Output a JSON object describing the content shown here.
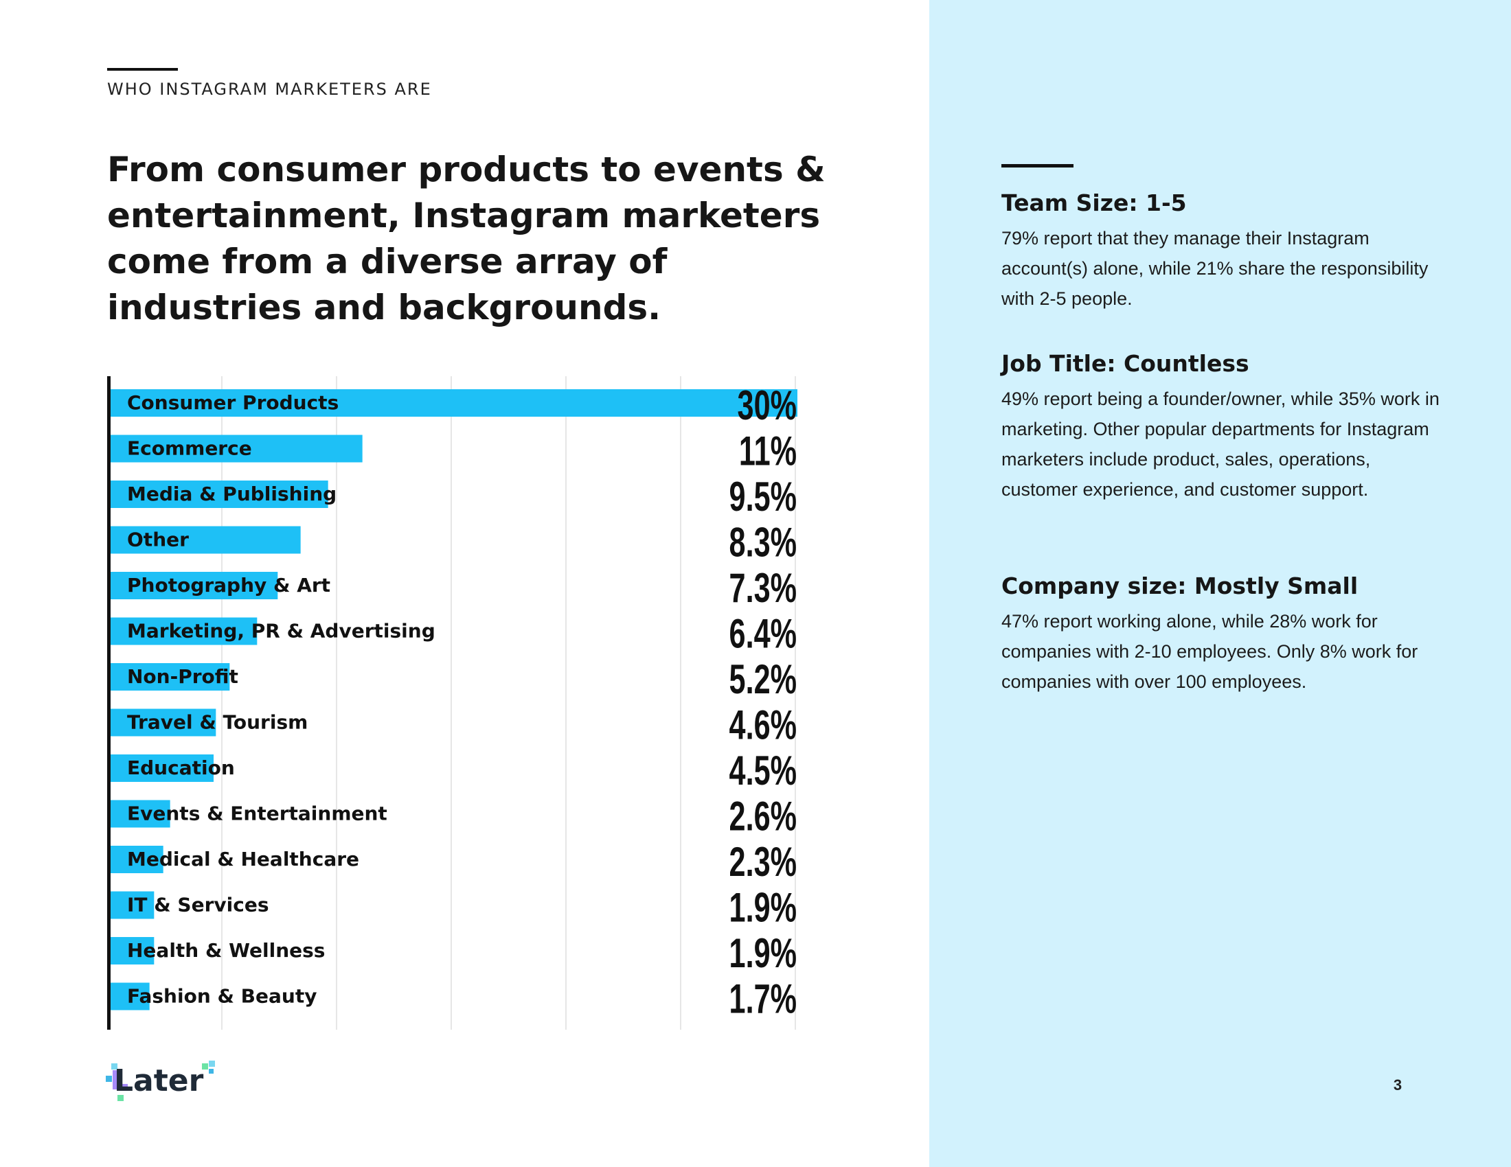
{
  "header": {
    "eyebrow": "WHO INSTAGRAM MARKETERS ARE",
    "headline": "From consumer products to events & entertainment, Instagram marketers come from a diverse array of industries and backgrounds."
  },
  "chart_data": {
    "type": "bar",
    "orientation": "horizontal",
    "categories": [
      "Consumer Products",
      "Ecommerce",
      "Media & Publishing",
      "Other",
      "Photography & Art",
      "Marketing, PR & Advertising",
      "Non-Profit",
      "Travel & Tourism",
      "Education",
      "Events & Entertainment",
      "Medical & Healthcare",
      "IT & Services",
      "Health & Wellness",
      "Fashion & Beauty"
    ],
    "values": [
      30,
      11,
      9.5,
      8.3,
      7.3,
      6.4,
      5.2,
      4.6,
      4.5,
      2.6,
      2.3,
      1.9,
      1.9,
      1.7
    ],
    "value_labels": [
      "30%",
      "11%",
      "9.5%",
      "8.3%",
      "7.3%",
      "6.4%",
      "5.2%",
      "4.6%",
      "4.5%",
      "2.6%",
      "2.3%",
      "1.9%",
      "1.9%",
      "1.7%"
    ],
    "xlim": [
      0,
      30
    ],
    "grid": true,
    "bar_color": "#1ec0f6"
  },
  "sidebar": {
    "blocks": [
      {
        "title": "Team Size: 1-5",
        "body": "79% report that they manage their Instagram account(s) alone, while 21% share the responsibility with 2-5 people."
      },
      {
        "title": "Job Title: Countless",
        "body": "49% report being a founder/owner, while 35% work in marketing. Other popular departments for Instagram marketers include product, sales, operations, customer experience, and customer support."
      },
      {
        "title": "Company size: Mostly Small",
        "body": "47% report working alone, while 28% work for companies with 2-10 employees. Only 8% work for companies with over 100 employees."
      }
    ]
  },
  "footer": {
    "logo_text": "Later",
    "page_number": "3"
  },
  "colors": {
    "panel_bg": "#d2f2fd",
    "accent_blue": "#1ec0f6",
    "text_dark": "#161616"
  }
}
